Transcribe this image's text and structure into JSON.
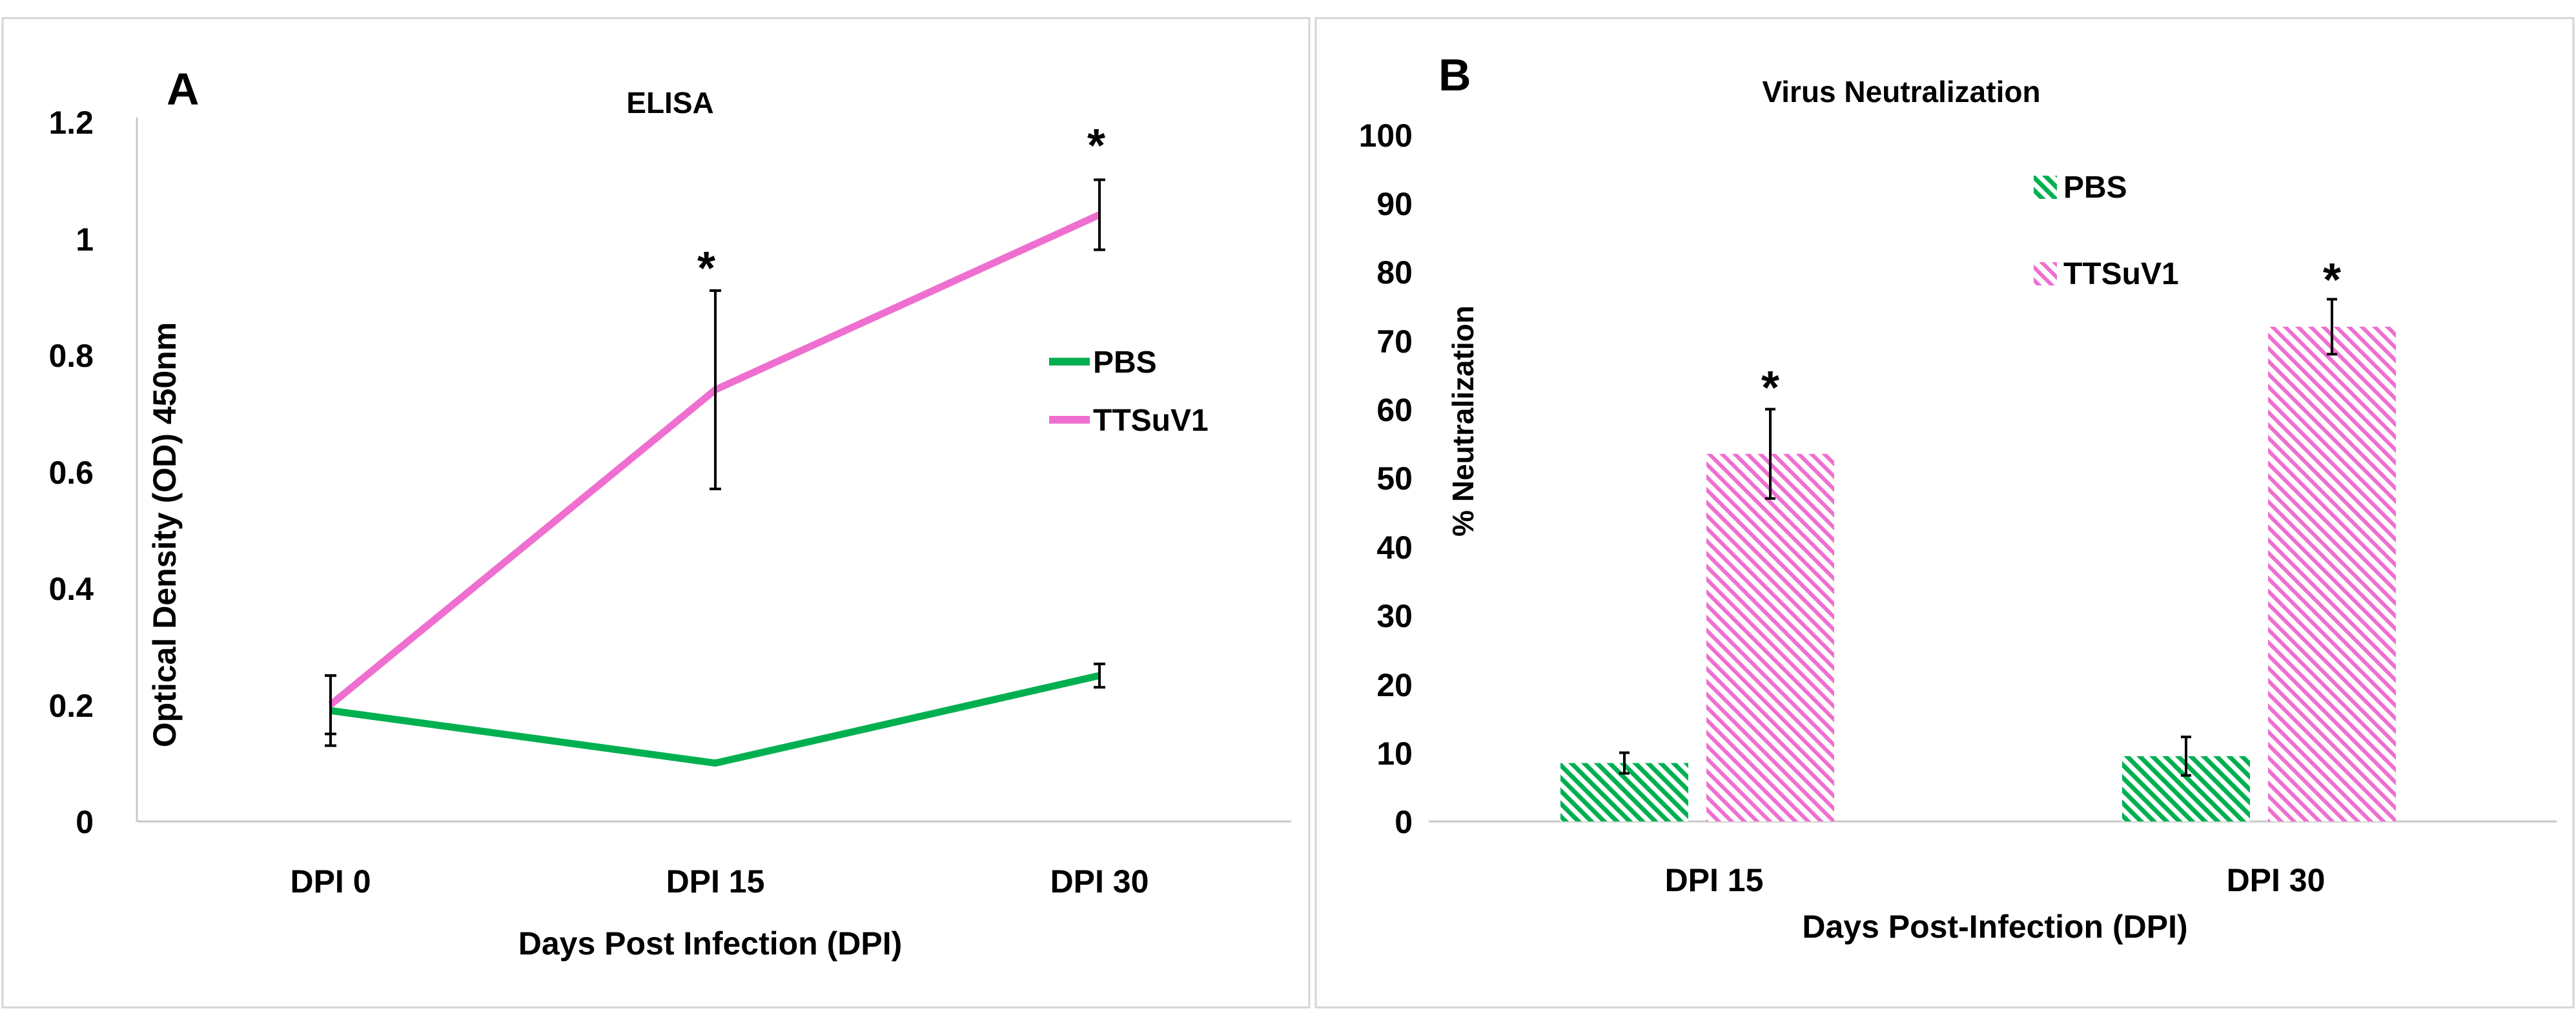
{
  "colors": {
    "pbs": "#00b050",
    "ttsuv1": "#ee6fd0",
    "axis": "#c8c8c8",
    "text": "#000000",
    "error_bar": "#000000"
  },
  "chart_data": [
    {
      "type": "line",
      "panel_label": "A",
      "title": "ELISA",
      "xlabel": "Days Post Infection (DPI)",
      "ylabel": "Optical Density (OD) 450nm",
      "categories": [
        "DPI 0",
        "DPI 15",
        "DPI 30"
      ],
      "ylim": [
        0,
        1.2
      ],
      "yticks": [
        0,
        0.2,
        0.4,
        0.6,
        0.8,
        1,
        1.2
      ],
      "ytick_labels": [
        "0",
        "0.2",
        "0.4",
        "0.6",
        "0.8",
        "1",
        "1.2"
      ],
      "grid": false,
      "legend_position": "right",
      "series": [
        {
          "name": "PBS",
          "values": [
            0.19,
            0.1,
            0.25
          ],
          "errors": [
            0.06,
            0.0,
            0.02
          ]
        },
        {
          "name": "TTSuV1",
          "values": [
            0.2,
            0.74,
            1.04
          ],
          "errors": [
            0.05,
            0.17,
            0.06
          ]
        }
      ],
      "significance": [
        {
          "category": "DPI 15",
          "label": "*"
        },
        {
          "category": "DPI 30",
          "label": "*"
        }
      ]
    },
    {
      "type": "bar",
      "panel_label": "B",
      "title": "Virus Neutralization",
      "xlabel": "Days Post-Infection (DPI)",
      "ylabel": "% Neutralization",
      "categories": [
        "DPI 15",
        "DPI 30"
      ],
      "ylim": [
        0,
        100
      ],
      "yticks": [
        0,
        10,
        20,
        30,
        40,
        50,
        60,
        70,
        80,
        90,
        100
      ],
      "ytick_labels": [
        "0",
        "10",
        "20",
        "30",
        "40",
        "50",
        "60",
        "70",
        "80",
        "90",
        "100"
      ],
      "grid": false,
      "legend_position": "top-center",
      "series": [
        {
          "name": "PBS",
          "values": [
            8.5,
            9.5
          ],
          "errors": [
            1.5,
            2.8
          ]
        },
        {
          "name": "TTSuV1",
          "values": [
            53.5,
            72
          ],
          "errors": [
            6.5,
            4.0
          ]
        }
      ],
      "significance": [
        {
          "category": "DPI 15",
          "series": "TTSuV1",
          "label": "*"
        },
        {
          "category": "DPI 30",
          "series": "TTSuV1",
          "label": "*"
        }
      ]
    }
  ]
}
